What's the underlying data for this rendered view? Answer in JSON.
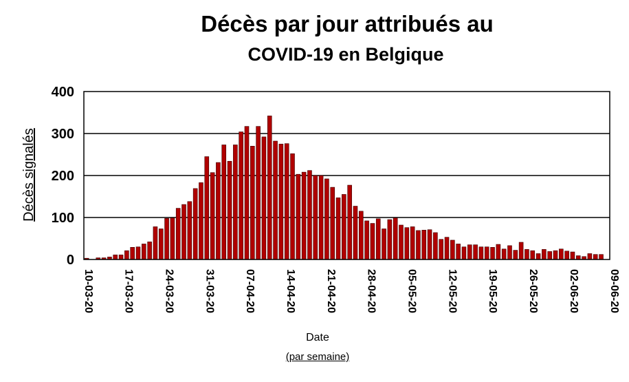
{
  "chart_data": {
    "type": "bar",
    "title": "Décès par jour attribués au",
    "subtitle": "COVID-19 en Belgique",
    "ylabel": "Décès signalés",
    "xlabel": "Date",
    "xlabel_note": "(par semaine)",
    "ylim": [
      0,
      400
    ],
    "yticks": [
      0,
      100,
      200,
      300,
      400
    ],
    "grid": true,
    "bar_color": "#b00000",
    "x_start": "10-03-20",
    "x_end": "09-06-20",
    "xtick_labels": [
      "10-03-20",
      "17-03-20",
      "24-03-20",
      "31-03-20",
      "07-04-20",
      "14-04-20",
      "21-04-20",
      "28-04-20",
      "05-05-20",
      "12-05-20",
      "19-05-20",
      "26-05-20",
      "02-06-20",
      "09-06-20"
    ],
    "categories": [
      "10-03-20",
      "11-03-20",
      "12-03-20",
      "13-03-20",
      "14-03-20",
      "15-03-20",
      "16-03-20",
      "17-03-20",
      "18-03-20",
      "19-03-20",
      "20-03-20",
      "21-03-20",
      "22-03-20",
      "23-03-20",
      "24-03-20",
      "25-03-20",
      "26-03-20",
      "27-03-20",
      "28-03-20",
      "29-03-20",
      "30-03-20",
      "31-03-20",
      "01-04-20",
      "02-04-20",
      "03-04-20",
      "04-04-20",
      "05-04-20",
      "06-04-20",
      "07-04-20",
      "08-04-20",
      "09-04-20",
      "10-04-20",
      "11-04-20",
      "12-04-20",
      "13-04-20",
      "14-04-20",
      "15-04-20",
      "16-04-20",
      "17-04-20",
      "18-04-20",
      "19-04-20",
      "20-04-20",
      "21-04-20",
      "22-04-20",
      "23-04-20",
      "24-04-20",
      "25-04-20",
      "26-04-20",
      "27-04-20",
      "28-04-20",
      "29-04-20",
      "30-04-20",
      "01-05-20",
      "02-05-20",
      "03-05-20",
      "04-05-20",
      "05-05-20",
      "06-05-20",
      "07-05-20",
      "08-05-20",
      "09-05-20",
      "10-05-20",
      "11-05-20",
      "12-05-20",
      "13-05-20",
      "14-05-20",
      "15-05-20",
      "16-05-20",
      "17-05-20",
      "18-05-20",
      "19-05-20",
      "20-05-20",
      "21-05-20",
      "22-05-20",
      "23-05-20",
      "24-05-20",
      "25-05-20",
      "26-05-20",
      "27-05-20",
      "28-05-20",
      "29-05-20",
      "30-05-20",
      "31-05-20",
      "01-06-20",
      "02-06-20",
      "03-06-20",
      "04-06-20",
      "05-06-20",
      "06-06-20",
      "07-06-20",
      "08-06-20",
      "09-06-20"
    ],
    "values": [
      3,
      0,
      4,
      4,
      6,
      11,
      11,
      21,
      29,
      30,
      37,
      42,
      78,
      73,
      98,
      99,
      122,
      131,
      138,
      169,
      183,
      245,
      207,
      231,
      273,
      234,
      273,
      304,
      317,
      270,
      317,
      292,
      342,
      282,
      275,
      276,
      252,
      203,
      208,
      212,
      200,
      200,
      192,
      172,
      147,
      155,
      177,
      127,
      115,
      92,
      86,
      97,
      73,
      95,
      99,
      82,
      76,
      78,
      69,
      70,
      71,
      64,
      48,
      53,
      46,
      37,
      30,
      35,
      35,
      30,
      30,
      29,
      36,
      25,
      33,
      22,
      41,
      24,
      21,
      14,
      24,
      19,
      21,
      25,
      20,
      18,
      9,
      7,
      14,
      12,
      12,
      0
    ]
  }
}
